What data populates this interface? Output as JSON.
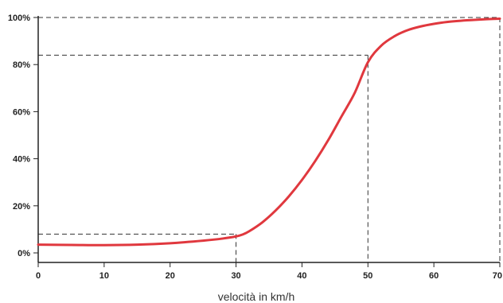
{
  "chart_data": {
    "type": "line",
    "xlabel": "velocità in km/h",
    "ylabel": "",
    "xlim": [
      0,
      70
    ],
    "ylim": [
      0,
      100
    ],
    "x_ticks": [
      0,
      10,
      20,
      30,
      40,
      50,
      60,
      70
    ],
    "x_tick_labels": [
      "0",
      "10",
      "20",
      "30",
      "40",
      "50",
      "60",
      "70"
    ],
    "y_ticks": [
      0,
      20,
      40,
      60,
      80,
      100
    ],
    "y_tick_labels": [
      "0%",
      "20%",
      "40%",
      "60%",
      "80%",
      "100%"
    ],
    "grid": false,
    "legend": "none",
    "series": [
      {
        "color": "#e0383e",
        "points": [
          [
            0,
            3.5
          ],
          [
            5,
            3.4
          ],
          [
            10,
            3.3
          ],
          [
            15,
            3.5
          ],
          [
            20,
            4.1
          ],
          [
            25,
            5.2
          ],
          [
            28,
            6.1
          ],
          [
            30,
            7.0
          ],
          [
            31,
            7.8
          ],
          [
            32,
            9.2
          ],
          [
            34,
            13
          ],
          [
            36,
            18
          ],
          [
            38,
            24
          ],
          [
            40,
            31
          ],
          [
            42,
            39
          ],
          [
            44,
            48
          ],
          [
            46,
            58
          ],
          [
            48,
            68
          ],
          [
            50,
            81
          ],
          [
            52,
            88
          ],
          [
            54,
            92
          ],
          [
            56,
            94.6
          ],
          [
            58,
            96.2
          ],
          [
            60,
            97.3
          ],
          [
            62,
            98.1
          ],
          [
            65,
            98.8
          ],
          [
            68,
            99.3
          ],
          [
            70,
            99.5
          ]
        ]
      }
    ],
    "reference_lines": [
      {
        "x": 30,
        "y": 8
      },
      {
        "x": 50,
        "y": 84
      },
      {
        "x": 70,
        "y": 100
      }
    ]
  }
}
